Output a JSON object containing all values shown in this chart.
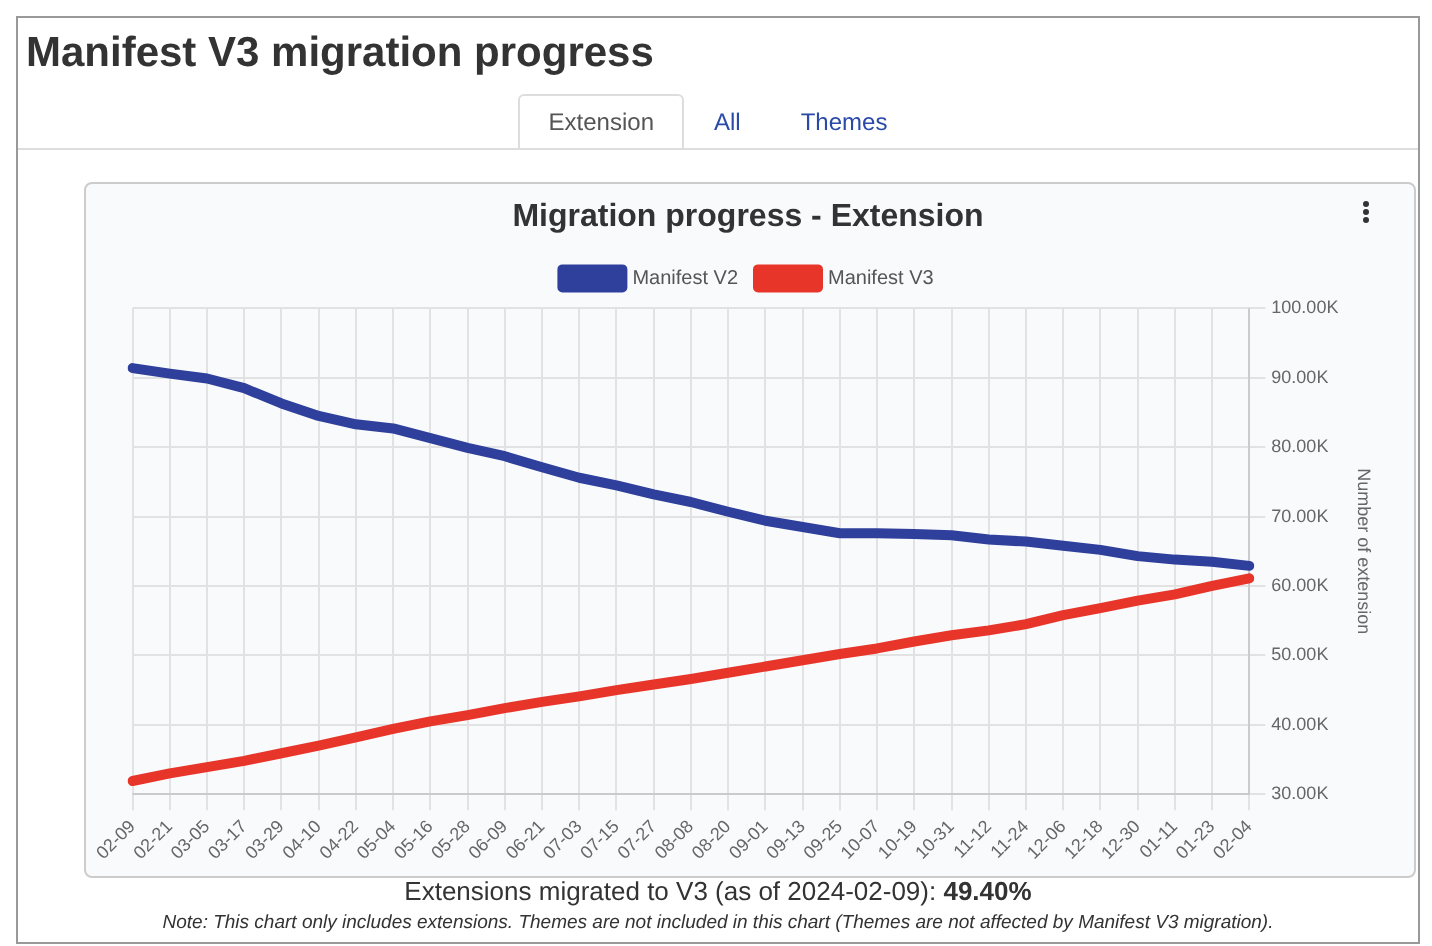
{
  "chart_data": {
    "type": "line",
    "title": "Migration progress - Extension",
    "ylabel": "Number of extension",
    "annotations": [
      "Manifest V3 migration progress",
      "Extension",
      "All",
      "Themes",
      "Extensions migrated to V3 (as of 2024-02-09): 49.40%",
      "Note: This chart only includes extensions. Themes are not included in this chart (Themes are not affected by Manifest V3 migration)."
    ],
    "categories": [
      "02-09",
      "02-21",
      "03-05",
      "03-17",
      "03-29",
      "04-10",
      "04-22",
      "05-04",
      "05-16",
      "05-28",
      "06-09",
      "06-21",
      "07-03",
      "07-15",
      "07-27",
      "08-08",
      "08-20",
      "09-01",
      "09-13",
      "09-25",
      "10-07",
      "10-19",
      "10-31",
      "11-12",
      "11-24",
      "12-06",
      "12-18",
      "12-30",
      "01-11",
      "01-23",
      "02-04"
    ],
    "series": [
      {
        "name": "Manifest V2",
        "color": "#2e3f9c",
        "values": [
          91400,
          90600,
          89900,
          88500,
          86300,
          84500,
          83300,
          82700,
          81300,
          79900,
          78700,
          77100,
          75600,
          74500,
          73200,
          72100,
          70700,
          69400,
          68500,
          67600,
          67600,
          67500,
          67300,
          66700,
          66400,
          65800,
          65200,
          64300,
          63800,
          63500,
          62900
        ]
      },
      {
        "name": "Manifest V3",
        "color": "#e8352a",
        "values": [
          31900,
          33000,
          33900,
          34800,
          35900,
          37000,
          38200,
          39400,
          40500,
          41400,
          42400,
          43300,
          44100,
          45000,
          45800,
          46600,
          47500,
          48400,
          49300,
          50200,
          51000,
          52000,
          52900,
          53600,
          54500,
          55800,
          56800,
          57900,
          58800,
          60000,
          61100
        ]
      }
    ],
    "ylim": [
      30000,
      100000
    ],
    "yticks": [
      {
        "value": 30000,
        "label": "30.00K"
      },
      {
        "value": 40000,
        "label": "40.00K"
      },
      {
        "value": 50000,
        "label": "50.00K"
      },
      {
        "value": 60000,
        "label": "60.00K"
      },
      {
        "value": 70000,
        "label": "70.00K"
      },
      {
        "value": 80000,
        "label": "80.00K"
      },
      {
        "value": 90000,
        "label": "90.00K"
      },
      {
        "value": 100000,
        "label": "100.00K"
      }
    ],
    "grid": true,
    "legend": "top",
    "marker": "none",
    "line_style": "solid"
  }
}
